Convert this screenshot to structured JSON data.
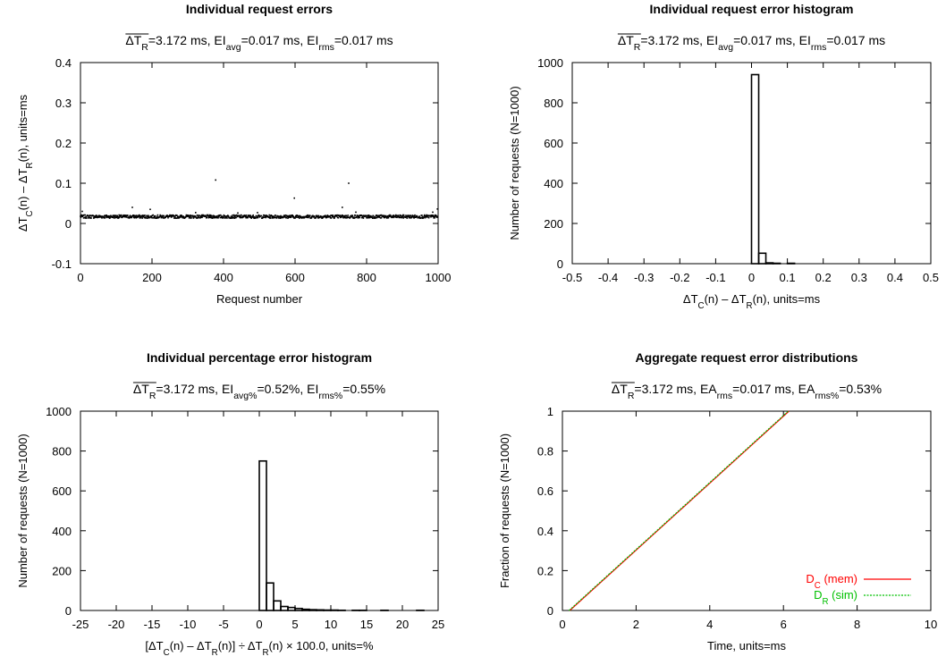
{
  "chart_data": [
    {
      "type": "scatter",
      "title": "Individual request errors",
      "subtitle": {
        "bar": "ΔT",
        "barsub": "R",
        "parts": [
          [
            "t",
            "=3.172 ms, EI"
          ],
          [
            "s",
            "avg"
          ],
          [
            "t",
            "=0.017 ms, EI"
          ],
          [
            "s",
            "rms"
          ],
          [
            "t",
            "=0.017 ms"
          ]
        ]
      },
      "xlabel": [
        [
          "t",
          "Request number"
        ]
      ],
      "ylabel": [
        [
          "t",
          "ΔT"
        ],
        [
          "s",
          "C"
        ],
        [
          "t",
          "(n) – ΔT"
        ],
        [
          "s",
          "R"
        ],
        [
          "t",
          "(n), units=ms"
        ]
      ],
      "xlim": [
        0,
        1000
      ],
      "ylim": [
        -0.1,
        0.4
      ],
      "xticks": [
        0,
        200,
        400,
        600,
        800,
        1000
      ],
      "yticks": [
        -0.1,
        0,
        0.1,
        0.2,
        0.3,
        0.4
      ],
      "n_points": 1000,
      "baseline": 0.017,
      "outliers": [
        [
          5,
          0.03
        ],
        [
          145,
          0.04
        ],
        [
          195,
          0.035
        ],
        [
          322,
          0.027
        ],
        [
          378,
          0.108
        ],
        [
          440,
          0.026
        ],
        [
          495,
          0.027
        ],
        [
          598,
          0.063
        ],
        [
          732,
          0.04
        ],
        [
          750,
          0.1
        ],
        [
          770,
          0.028
        ],
        [
          985,
          0.028
        ],
        [
          998,
          0.036
        ]
      ]
    },
    {
      "type": "bar",
      "title": "Individual request error histogram",
      "subtitle": {
        "bar": "ΔT",
        "barsub": "R",
        "parts": [
          [
            "t",
            "=3.172 ms, EI"
          ],
          [
            "s",
            "avg"
          ],
          [
            "t",
            "=0.017 ms, EI"
          ],
          [
            "s",
            "rms"
          ],
          [
            "t",
            "=0.017 ms"
          ]
        ]
      },
      "xlabel": [
        [
          "t",
          "ΔT"
        ],
        [
          "s",
          "C"
        ],
        [
          "t",
          "(n) – ΔT"
        ],
        [
          "s",
          "R"
        ],
        [
          "t",
          "(n), units=ms"
        ]
      ],
      "ylabel": [
        [
          "t",
          "Number of requests (N=1000)"
        ]
      ],
      "xlim": [
        -0.5,
        0.5
      ],
      "ylim": [
        0,
        1000
      ],
      "xticks": [
        -0.5,
        -0.4,
        -0.3,
        -0.2,
        -0.1,
        0,
        0.1,
        0.2,
        0.3,
        0.4,
        0.5
      ],
      "yticks": [
        0,
        200,
        400,
        600,
        800,
        1000
      ],
      "bins": [
        [
          0,
          0.02,
          940
        ],
        [
          0.02,
          0.04,
          52
        ],
        [
          0.04,
          0.06,
          4
        ],
        [
          0.06,
          0.08,
          2
        ],
        [
          0.1,
          0.12,
          2
        ]
      ]
    },
    {
      "type": "bar",
      "title": "Individual percentage error histogram",
      "subtitle": {
        "bar": "ΔT",
        "barsub": "R",
        "parts": [
          [
            "t",
            "=3.172 ms, EI"
          ],
          [
            "s",
            "avg%"
          ],
          [
            "t",
            "=0.52%, EI"
          ],
          [
            "s",
            "rms%"
          ],
          [
            "t",
            "=0.55%"
          ]
        ]
      },
      "xlabel": [
        [
          "t",
          "[ΔT"
        ],
        [
          "s",
          "C"
        ],
        [
          "t",
          "(n) – ΔT"
        ],
        [
          "s",
          "R"
        ],
        [
          "t",
          "(n)] ÷ ΔT"
        ],
        [
          "s",
          "R"
        ],
        [
          "t",
          "(n) × 100.0, units=%"
        ]
      ],
      "ylabel": [
        [
          "t",
          "Number of requests (N=1000)"
        ]
      ],
      "xlim": [
        -25,
        25
      ],
      "ylim": [
        0,
        1000
      ],
      "xticks": [
        -25,
        -20,
        -15,
        -10,
        -5,
        0,
        5,
        10,
        15,
        20,
        25
      ],
      "yticks": [
        0,
        200,
        400,
        600,
        800,
        1000
      ],
      "bins": [
        [
          0,
          1,
          750
        ],
        [
          1,
          2,
          138
        ],
        [
          2,
          3,
          48
        ],
        [
          3,
          4,
          20
        ],
        [
          4,
          5,
          15
        ],
        [
          5,
          6,
          10
        ],
        [
          6,
          7,
          6
        ],
        [
          7,
          8,
          4
        ],
        [
          8,
          9,
          3
        ],
        [
          9,
          10,
          2
        ],
        [
          10,
          11,
          2
        ],
        [
          11,
          12,
          1
        ],
        [
          13,
          14,
          1
        ],
        [
          14,
          15,
          1
        ],
        [
          17,
          18,
          1
        ],
        [
          22,
          23,
          1
        ]
      ]
    },
    {
      "type": "line",
      "title": "Aggregate request error distributions",
      "subtitle": {
        "bar": "ΔT",
        "barsub": "R",
        "parts": [
          [
            "t",
            "=3.172 ms, EA"
          ],
          [
            "s",
            "rms"
          ],
          [
            "t",
            "=0.017 ms, EA"
          ],
          [
            "s",
            "rms%"
          ],
          [
            "t",
            "=0.53%"
          ]
        ]
      },
      "xlabel": [
        [
          "t",
          "Time, units=ms"
        ]
      ],
      "ylabel": [
        [
          "t",
          "Fraction of requests (N=1000)"
        ]
      ],
      "xlim": [
        0,
        10
      ],
      "ylim": [
        0,
        1
      ],
      "xticks": [
        0,
        2,
        4,
        6,
        8,
        10
      ],
      "yticks": [
        0,
        0.2,
        0.4,
        0.6,
        0.8,
        1
      ],
      "legend_position": "bottom-right",
      "series": [
        {
          "name": "D",
          "sub": "C",
          "suffix": " (mem)",
          "color": "#ff0000",
          "dashed": false,
          "x": [
            0.2,
            6.15
          ],
          "y": [
            0,
            1
          ]
        },
        {
          "name": "D",
          "sub": "R",
          "suffix": " (sim)",
          "color": "#00c000",
          "dashed": true,
          "x": [
            0.18,
            6.13
          ],
          "y": [
            0,
            1
          ]
        }
      ]
    }
  ]
}
